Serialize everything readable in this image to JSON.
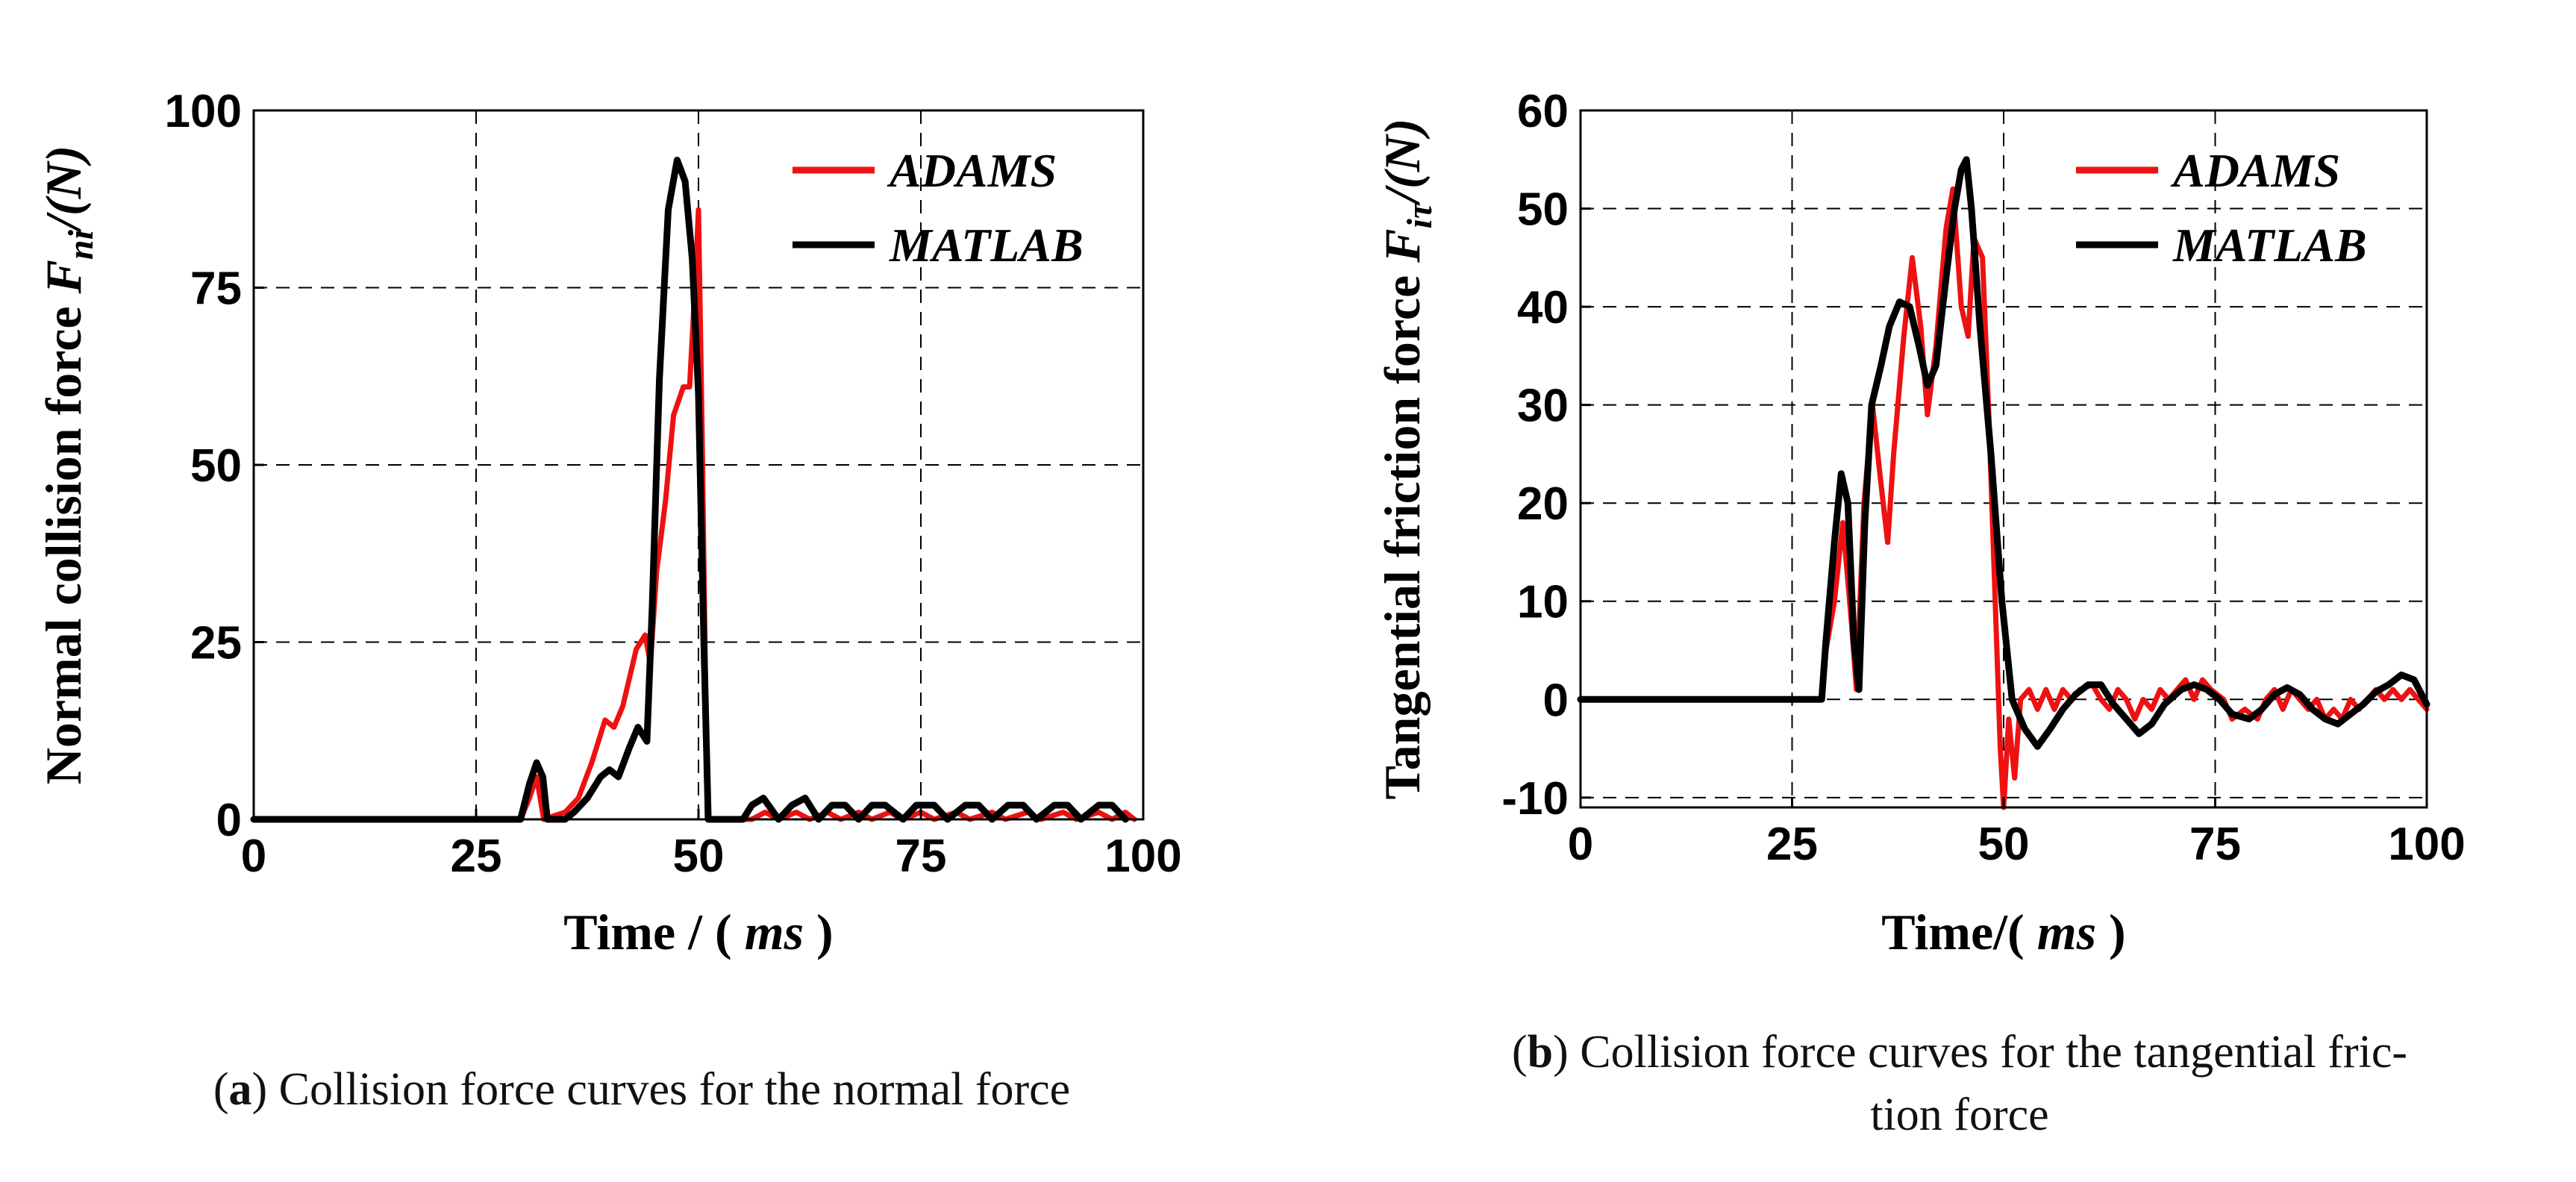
{
  "chart_data": [
    {
      "type": "line",
      "panel": "a",
      "x_label_prefix": "Time / (",
      "x_label_unit": "ms",
      "x_label_suffix": ")",
      "y_label_main": "Normal collision force",
      "y_label_symbol": "F",
      "y_label_subscript": "ni",
      "y_label_unit": "/(N)",
      "xlim": [
        0,
        100
      ],
      "ylim": [
        0,
        100
      ],
      "xticks": [
        0,
        25,
        50,
        75,
        100
      ],
      "yticks": [
        0,
        25,
        50,
        75,
        100
      ],
      "grid": true,
      "legend_position": "top-right",
      "series": [
        {
          "name": "ADAMS",
          "color": "#ee1111",
          "points": [
            [
              0,
              0
            ],
            [
              30,
              0
            ],
            [
              31,
              3
            ],
            [
              31.8,
              6
            ],
            [
              32.6,
              0
            ],
            [
              35,
              1
            ],
            [
              36.5,
              3
            ],
            [
              38,
              8
            ],
            [
              39.5,
              14
            ],
            [
              40.5,
              13
            ],
            [
              41.5,
              16
            ],
            [
              43,
              24
            ],
            [
              44,
              26
            ],
            [
              44.6,
              22
            ],
            [
              45.3,
              35
            ],
            [
              46.3,
              45
            ],
            [
              47.2,
              57
            ],
            [
              48.3,
              61
            ],
            [
              49,
              61
            ],
            [
              49.6,
              75
            ],
            [
              50,
              86
            ],
            [
              50.4,
              55
            ],
            [
              51,
              0
            ],
            [
              56,
              0
            ],
            [
              57.5,
              1
            ],
            [
              59,
              0
            ],
            [
              61,
              1
            ],
            [
              62.5,
              0
            ],
            [
              64.5,
              1
            ],
            [
              66,
              0
            ],
            [
              68,
              1
            ],
            [
              69.5,
              0
            ],
            [
              71.5,
              1
            ],
            [
              73,
              0
            ],
            [
              75,
              1
            ],
            [
              76.5,
              0
            ],
            [
              79,
              1
            ],
            [
              80.5,
              0
            ],
            [
              83,
              1
            ],
            [
              84.5,
              0
            ],
            [
              87,
              1
            ],
            [
              88.5,
              0
            ],
            [
              91,
              1
            ],
            [
              92.5,
              0
            ],
            [
              95,
              1
            ],
            [
              96.5,
              0
            ],
            [
              98,
              1
            ],
            [
              99,
              0
            ]
          ]
        },
        {
          "name": "MATLAB",
          "color": "#000000",
          "points": [
            [
              0,
              0
            ],
            [
              30,
              0
            ],
            [
              31,
              5
            ],
            [
              31.8,
              8
            ],
            [
              32.5,
              6
            ],
            [
              33,
              0
            ],
            [
              35,
              0
            ],
            [
              36,
              1
            ],
            [
              37.5,
              3
            ],
            [
              39,
              6
            ],
            [
              40,
              7
            ],
            [
              41,
              6
            ],
            [
              42.2,
              10
            ],
            [
              43.2,
              13
            ],
            [
              44.2,
              11
            ],
            [
              44.8,
              30
            ],
            [
              45.6,
              62
            ],
            [
              46.6,
              86
            ],
            [
              47.6,
              93
            ],
            [
              48.5,
              90
            ],
            [
              49.3,
              79
            ],
            [
              50,
              60
            ],
            [
              50.6,
              25
            ],
            [
              51.1,
              0
            ],
            [
              55,
              0
            ],
            [
              56,
              2
            ],
            [
              57.3,
              3
            ],
            [
              59,
              0
            ],
            [
              60.5,
              2
            ],
            [
              62,
              3
            ],
            [
              63.5,
              0
            ],
            [
              65,
              2
            ],
            [
              66.5,
              2
            ],
            [
              68,
              0
            ],
            [
              69.5,
              2
            ],
            [
              71,
              2
            ],
            [
              73,
              0
            ],
            [
              74.5,
              2
            ],
            [
              76.5,
              2
            ],
            [
              78,
              0
            ],
            [
              80,
              2
            ],
            [
              81.5,
              2
            ],
            [
              83,
              0
            ],
            [
              84.8,
              2
            ],
            [
              86.5,
              2
            ],
            [
              88,
              0
            ],
            [
              90,
              2
            ],
            [
              91.5,
              2
            ],
            [
              93,
              0
            ],
            [
              95,
              2
            ],
            [
              96.5,
              2
            ],
            [
              98,
              0
            ]
          ]
        }
      ],
      "caption_label": "a",
      "caption_text": "Collision force curves for the normal force"
    },
    {
      "type": "line",
      "panel": "b",
      "x_label_prefix": "Time/(",
      "x_label_unit": "ms",
      "x_label_suffix": ")",
      "y_label_main": "Tangential friction force",
      "y_label_symbol": "F",
      "y_label_subscript": "iτ",
      "y_label_unit": "/(N)",
      "xlim": [
        0,
        100
      ],
      "ylim": [
        -11,
        60
      ],
      "xticks": [
        0,
        25,
        50,
        75,
        100
      ],
      "yticks": [
        -10,
        0,
        10,
        20,
        30,
        40,
        50,
        60
      ],
      "grid": true,
      "legend_position": "top-right",
      "series": [
        {
          "name": "ADAMS",
          "color": "#ee1111",
          "points": [
            [
              0,
              0
            ],
            [
              28.5,
              0
            ],
            [
              29,
              5
            ],
            [
              30,
              10
            ],
            [
              31,
              18
            ],
            [
              32,
              8
            ],
            [
              32.6,
              1
            ],
            [
              33.5,
              20
            ],
            [
              34.5,
              30
            ],
            [
              35.5,
              22
            ],
            [
              36.3,
              16
            ],
            [
              37,
              25
            ],
            [
              38.2,
              37
            ],
            [
              39.2,
              45
            ],
            [
              40.2,
              38
            ],
            [
              41,
              29
            ],
            [
              42,
              36
            ],
            [
              43.2,
              48
            ],
            [
              44,
              52
            ],
            [
              45,
              40
            ],
            [
              45.8,
              37
            ],
            [
              46.5,
              47
            ],
            [
              47.5,
              45
            ],
            [
              48.2,
              30
            ],
            [
              49,
              10
            ],
            [
              49.6,
              -5
            ],
            [
              50,
              -11
            ],
            [
              50.6,
              -2
            ],
            [
              51.3,
              -8
            ],
            [
              52,
              0
            ],
            [
              53,
              1
            ],
            [
              54,
              -1
            ],
            [
              55,
              1
            ],
            [
              56,
              -1
            ],
            [
              57,
              1
            ],
            [
              58,
              0
            ],
            [
              59,
              1
            ],
            [
              60.5,
              1.5
            ],
            [
              61.5,
              0
            ],
            [
              62.5,
              -1
            ],
            [
              63.5,
              1
            ],
            [
              64.5,
              0
            ],
            [
              65.5,
              -2
            ],
            [
              66.5,
              0
            ],
            [
              67.5,
              -1
            ],
            [
              68.5,
              1
            ],
            [
              69.5,
              0
            ],
            [
              70.5,
              1
            ],
            [
              71.5,
              2
            ],
            [
              72.5,
              0
            ],
            [
              73.5,
              2
            ],
            [
              74.5,
              1
            ],
            [
              76,
              0
            ],
            [
              77,
              -2
            ],
            [
              78.5,
              -1
            ],
            [
              80,
              -2
            ],
            [
              81,
              0
            ],
            [
              82,
              1
            ],
            [
              83,
              -1
            ],
            [
              84,
              1
            ],
            [
              85,
              0
            ],
            [
              86,
              -1
            ],
            [
              87,
              0
            ],
            [
              88,
              -2
            ],
            [
              89,
              -1
            ],
            [
              90,
              -2
            ],
            [
              91,
              0
            ],
            [
              92,
              -1
            ],
            [
              93,
              0
            ],
            [
              94,
              1
            ],
            [
              95,
              0
            ],
            [
              96,
              1
            ],
            [
              97,
              0
            ],
            [
              98,
              1
            ],
            [
              99,
              0
            ],
            [
              100,
              -1
            ]
          ]
        },
        {
          "name": "MATLAB",
          "color": "#000000",
          "points": [
            [
              0,
              0
            ],
            [
              28.5,
              0
            ],
            [
              29,
              6
            ],
            [
              30,
              16
            ],
            [
              30.8,
              23
            ],
            [
              31.6,
              20
            ],
            [
              32.3,
              6
            ],
            [
              32.9,
              1
            ],
            [
              33.6,
              18
            ],
            [
              34.4,
              30
            ],
            [
              35.5,
              34
            ],
            [
              36.5,
              38
            ],
            [
              37.7,
              40.5
            ],
            [
              38.9,
              40
            ],
            [
              40,
              36
            ],
            [
              41,
              32
            ],
            [
              42,
              34
            ],
            [
              43.2,
              43
            ],
            [
              44.2,
              50
            ],
            [
              45,
              54
            ],
            [
              45.6,
              55
            ],
            [
              46.2,
              50
            ],
            [
              47.2,
              38
            ],
            [
              48.5,
              25
            ],
            [
              49.8,
              10
            ],
            [
              51,
              0
            ],
            [
              52.5,
              -3
            ],
            [
              54,
              -4.8
            ],
            [
              55.5,
              -3
            ],
            [
              57,
              -1
            ],
            [
              58.5,
              0.5
            ],
            [
              60,
              1.5
            ],
            [
              61.5,
              1.5
            ],
            [
              63,
              -0.5
            ],
            [
              64.5,
              -2
            ],
            [
              66,
              -3.5
            ],
            [
              67.5,
              -2.5
            ],
            [
              69,
              -0.5
            ],
            [
              71,
              1
            ],
            [
              72.5,
              1.5
            ],
            [
              74,
              1
            ],
            [
              75.5,
              0
            ],
            [
              77,
              -1.5
            ],
            [
              79,
              -2
            ],
            [
              80.5,
              -1
            ],
            [
              82,
              0.5
            ],
            [
              83.5,
              1.2
            ],
            [
              85,
              0.5
            ],
            [
              86.5,
              -1
            ],
            [
              88,
              -2
            ],
            [
              89.5,
              -2.5
            ],
            [
              91,
              -1.5
            ],
            [
              92.5,
              -0.5
            ],
            [
              94,
              0.8
            ],
            [
              95.5,
              1.5
            ],
            [
              97,
              2.5
            ],
            [
              98.5,
              2
            ],
            [
              100,
              -0.5
            ]
          ]
        }
      ],
      "caption_label": "b",
      "caption_line1": "Collision force curves for the tangential fric-",
      "caption_line2": "tion force"
    }
  ]
}
